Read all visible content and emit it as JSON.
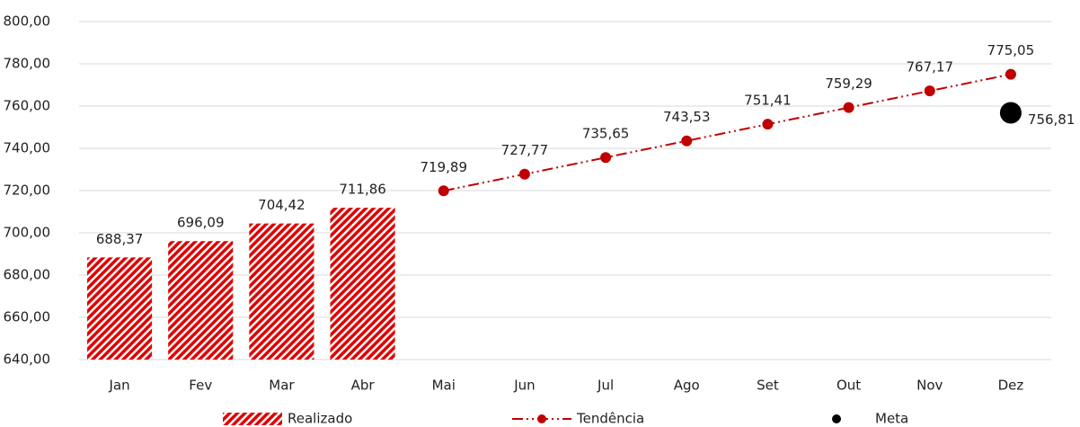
{
  "chart_data": {
    "type": "combo",
    "categories": [
      "Jan",
      "Fev",
      "Mar",
      "Abr",
      "Mai",
      "Jun",
      "Jul",
      "Ago",
      "Set",
      "Out",
      "Nov",
      "Dez"
    ],
    "series": [
      {
        "name": "Realizado",
        "type": "bar",
        "color": "#e00000",
        "values": [
          688.37,
          696.09,
          704.42,
          711.86,
          null,
          null,
          null,
          null,
          null,
          null,
          null,
          null
        ],
        "value_labels": [
          "688,37",
          "696,09",
          "704,42",
          "711,86",
          null,
          null,
          null,
          null,
          null,
          null,
          null,
          null
        ]
      },
      {
        "name": "Tendência",
        "type": "line",
        "color": "#c00000",
        "values": [
          null,
          null,
          null,
          null,
          719.89,
          727.77,
          735.65,
          743.53,
          751.41,
          759.29,
          767.17,
          775.05
        ],
        "value_labels": [
          null,
          null,
          null,
          null,
          "719,89",
          "727,77",
          "735,65",
          "743,53",
          "751,41",
          "759,29",
          "767,17",
          "775,05"
        ]
      },
      {
        "name": "Meta",
        "type": "scatter",
        "color": "#000000",
        "values": [
          null,
          null,
          null,
          null,
          null,
          null,
          null,
          null,
          null,
          null,
          null,
          756.81
        ],
        "value_labels": [
          null,
          null,
          null,
          null,
          null,
          null,
          null,
          null,
          null,
          null,
          null,
          "756,81"
        ]
      }
    ],
    "ylim": [
      640,
      800
    ],
    "yticks": [
      {
        "value": 640,
        "label": "640,00"
      },
      {
        "value": 660,
        "label": "660,00"
      },
      {
        "value": 680,
        "label": "680,00"
      },
      {
        "value": 700,
        "label": "700,00"
      },
      {
        "value": 720,
        "label": "720,00"
      },
      {
        "value": 740,
        "label": "740,00"
      },
      {
        "value": 760,
        "label": "760,00"
      },
      {
        "value": 780,
        "label": "780,00"
      },
      {
        "value": 800,
        "label": "800,00"
      }
    ],
    "grid": true,
    "legend": "bottom"
  }
}
